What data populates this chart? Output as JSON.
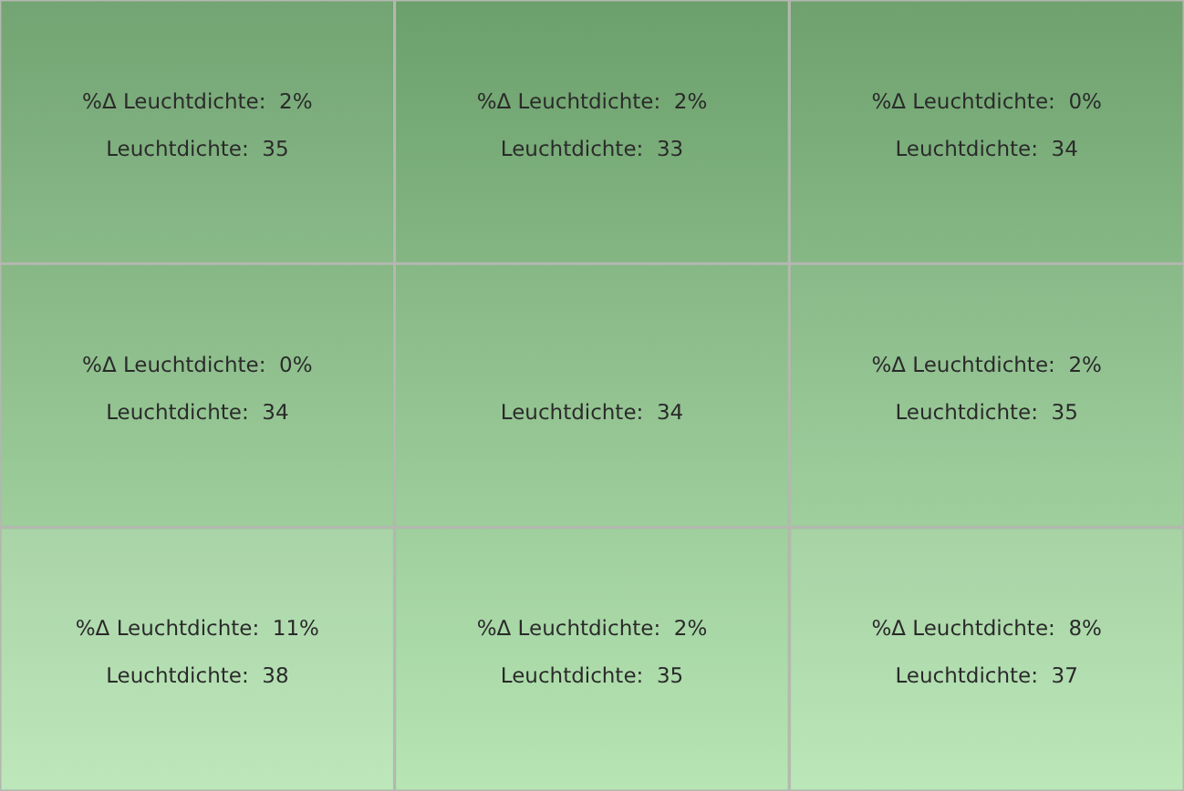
{
  "chart_data": {
    "type": "heatmap",
    "categories": [
      null,
      null,
      null
    ],
    "y_categories": [
      null,
      null,
      null
    ],
    "cells": [
      [
        35,
        33,
        34
      ],
      [
        34,
        34,
        35
      ],
      [
        38,
        35,
        37
      ]
    ],
    "cell_labels": [
      [
        "Leuchtdichte:  35",
        "Leuchtdichte:  33",
        "Leuchtdichte:  34"
      ],
      [
        "Leuchtdichte:  34",
        "Leuchtdichte:  34",
        "Leuchtdichte:  35"
      ],
      [
        "Leuchtdichte:  38",
        "Leuchtdichte:  35",
        "Leuchtdichte:  37"
      ]
    ],
    "annotations": [
      "%Δ Leuchtdichte:  2%",
      "%Δ Leuchtdichte:  2%",
      "%Δ Leuchtdichte:  0%",
      "%Δ Leuchtdichte:  0%",
      "%Δ Leuchtdichte:  2%",
      "%Δ Leuchtdichte:  11%",
      "%Δ Leuchtdichte:  2%",
      "%Δ Leuchtdichte:  8%"
    ]
  }
}
